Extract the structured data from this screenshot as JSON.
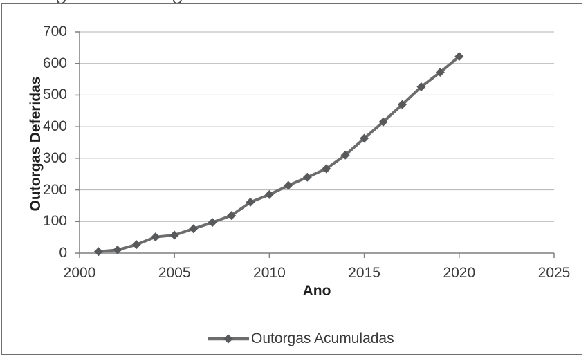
{
  "chart_data": {
    "type": "line",
    "title": "",
    "xlabel": "Ano",
    "ylabel": "Outorgas Deferidas",
    "xlim": [
      2000,
      2025
    ],
    "ylim": [
      0,
      700
    ],
    "x_ticks": [
      2000,
      2005,
      2010,
      2015,
      2020,
      2025
    ],
    "y_ticks": [
      0,
      100,
      200,
      300,
      400,
      500,
      600,
      700
    ],
    "grid": "horizontal",
    "legend_position": "bottom-center",
    "series": [
      {
        "name": "Outorgas Acumuladas",
        "marker": "diamond",
        "x": [
          2001,
          2002,
          2003,
          2004,
          2005,
          2006,
          2007,
          2008,
          2009,
          2010,
          2011,
          2012,
          2013,
          2014,
          2015,
          2016,
          2017,
          2018,
          2019,
          2020
        ],
        "values": [
          5,
          10,
          27,
          51,
          57,
          77,
          97,
          119,
          161,
          185,
          214,
          240,
          267,
          310,
          363,
          415,
          470,
          526,
          572,
          622
        ]
      }
    ],
    "colors": {
      "line": "#6d6d6d",
      "marker": "#58595b",
      "grid": "#b2b2b2",
      "axis": "#7f7f7f",
      "tick_text": "#3a3a3a",
      "title_text": "#1f1f1f",
      "frame_border": "#6f6f6f",
      "background": "#ffffff"
    }
  }
}
